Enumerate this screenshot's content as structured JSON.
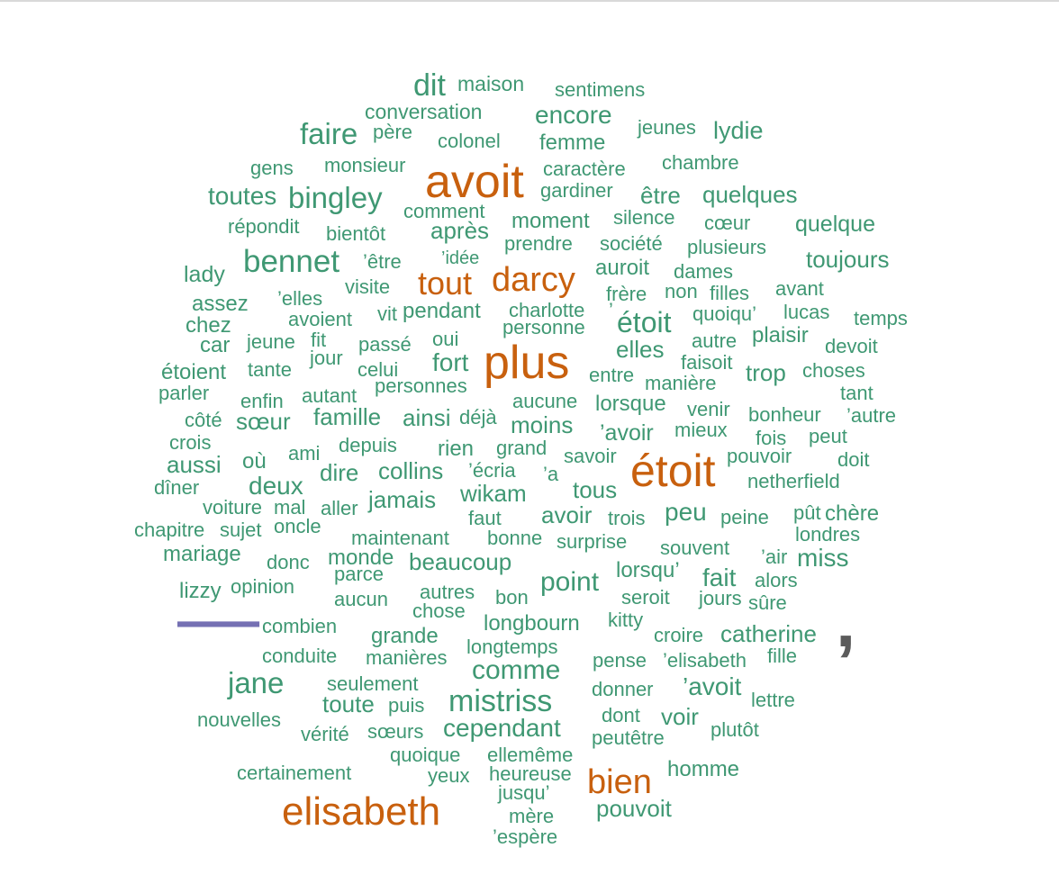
{
  "colors": {
    "big": "#c8600e",
    "normal": "#3f9873",
    "dash": "#7570b3",
    "comma": "#5b5b5b"
  },
  "words": [
    {
      "t": "dit",
      "c": "normal"
    },
    {
      "t": "maison",
      "c": "normal"
    },
    {
      "t": "sentimens",
      "c": "normal"
    },
    {
      "t": "conversation",
      "c": "normal"
    },
    {
      "t": "encore",
      "c": "normal"
    },
    {
      "t": "faire",
      "c": "normal"
    },
    {
      "t": "père",
      "c": "normal"
    },
    {
      "t": "jeunes",
      "c": "normal"
    },
    {
      "t": "lydie",
      "c": "normal"
    },
    {
      "t": "colonel",
      "c": "normal"
    },
    {
      "t": "femme",
      "c": "normal"
    },
    {
      "t": "gens",
      "c": "normal"
    },
    {
      "t": "monsieur",
      "c": "normal"
    },
    {
      "t": "avoit",
      "c": "big"
    },
    {
      "t": "caractère",
      "c": "normal"
    },
    {
      "t": "chambre",
      "c": "normal"
    },
    {
      "t": "gardiner",
      "c": "normal"
    },
    {
      "t": "toutes",
      "c": "normal"
    },
    {
      "t": "bingley",
      "c": "normal"
    },
    {
      "t": "être",
      "c": "normal"
    },
    {
      "t": "quelques",
      "c": "normal"
    },
    {
      "t": "comment",
      "c": "normal"
    },
    {
      "t": "répondit",
      "c": "normal"
    },
    {
      "t": "bientôt",
      "c": "normal"
    },
    {
      "t": "après",
      "c": "normal"
    },
    {
      "t": "moment",
      "c": "normal"
    },
    {
      "t": "silence",
      "c": "normal"
    },
    {
      "t": "cœur",
      "c": "normal"
    },
    {
      "t": "quelque",
      "c": "normal"
    },
    {
      "t": "prendre",
      "c": "normal"
    },
    {
      "t": "société",
      "c": "normal"
    },
    {
      "t": "plusieurs",
      "c": "normal"
    },
    {
      "t": "bennet",
      "c": "normal"
    },
    {
      "t": "’idée",
      "c": "normal"
    },
    {
      "t": "toujours",
      "c": "normal"
    },
    {
      "t": "’être",
      "c": "normal"
    },
    {
      "t": "auroit",
      "c": "normal"
    },
    {
      "t": "dames",
      "c": "normal"
    },
    {
      "t": "lady",
      "c": "normal"
    },
    {
      "t": "darcy",
      "c": "big"
    },
    {
      "t": "tout",
      "c": "big"
    },
    {
      "t": "visite",
      "c": "normal"
    },
    {
      "t": "frère",
      "c": "normal"
    },
    {
      "t": "non",
      "c": "normal"
    },
    {
      "t": "filles",
      "c": "normal"
    },
    {
      "t": "avant",
      "c": "normal"
    },
    {
      "t": "assez",
      "c": "normal"
    },
    {
      "t": "’elles",
      "c": "normal"
    },
    {
      "t": "pendant",
      "c": "normal"
    },
    {
      "t": "charlotte",
      "c": "normal"
    },
    {
      "t": "quoiqu’",
      "c": "normal"
    },
    {
      "t": "lucas",
      "c": "normal"
    },
    {
      "t": "avoient",
      "c": "normal"
    },
    {
      "t": "vit",
      "c": "normal"
    },
    {
      "t": "’",
      "c": "normal"
    },
    {
      "t": "étoit",
      "c": "normal"
    },
    {
      "t": "temps",
      "c": "normal"
    },
    {
      "t": "chez",
      "c": "normal"
    },
    {
      "t": "personne",
      "c": "normal"
    },
    {
      "t": "car",
      "c": "normal"
    },
    {
      "t": "jeune",
      "c": "normal"
    },
    {
      "t": "fit",
      "c": "normal"
    },
    {
      "t": "oui",
      "c": "normal"
    },
    {
      "t": "autre",
      "c": "normal"
    },
    {
      "t": "plaisir",
      "c": "normal"
    },
    {
      "t": "devoit",
      "c": "normal"
    },
    {
      "t": "passé",
      "c": "normal"
    },
    {
      "t": "elles",
      "c": "normal"
    },
    {
      "t": "jour",
      "c": "normal"
    },
    {
      "t": "fort",
      "c": "normal"
    },
    {
      "t": "plus",
      "c": "big"
    },
    {
      "t": "faisoit",
      "c": "normal"
    },
    {
      "t": "étoient",
      "c": "normal"
    },
    {
      "t": "tante",
      "c": "normal"
    },
    {
      "t": "celui",
      "c": "normal"
    },
    {
      "t": "entre",
      "c": "normal"
    },
    {
      "t": "trop",
      "c": "normal"
    },
    {
      "t": "choses",
      "c": "normal"
    },
    {
      "t": "parler",
      "c": "normal"
    },
    {
      "t": "personnes",
      "c": "normal"
    },
    {
      "t": "manière",
      "c": "normal"
    },
    {
      "t": "autant",
      "c": "normal"
    },
    {
      "t": "tant",
      "c": "normal"
    },
    {
      "t": "enfin",
      "c": "normal"
    },
    {
      "t": "aucune",
      "c": "normal"
    },
    {
      "t": "lorsque",
      "c": "normal"
    },
    {
      "t": "côté",
      "c": "normal"
    },
    {
      "t": "sœur",
      "c": "normal"
    },
    {
      "t": "famille",
      "c": "normal"
    },
    {
      "t": "ainsi",
      "c": "normal"
    },
    {
      "t": "déjà",
      "c": "normal"
    },
    {
      "t": "venir",
      "c": "normal"
    },
    {
      "t": "bonheur",
      "c": "normal"
    },
    {
      "t": "’autre",
      "c": "normal"
    },
    {
      "t": "moins",
      "c": "normal"
    },
    {
      "t": "’avoir",
      "c": "normal"
    },
    {
      "t": "mieux",
      "c": "normal"
    },
    {
      "t": "fois",
      "c": "normal"
    },
    {
      "t": "crois",
      "c": "normal"
    },
    {
      "t": "peut",
      "c": "normal"
    },
    {
      "t": "depuis",
      "c": "normal"
    },
    {
      "t": "rien",
      "c": "normal"
    },
    {
      "t": "grand",
      "c": "normal"
    },
    {
      "t": "ami",
      "c": "normal"
    },
    {
      "t": "savoir",
      "c": "normal"
    },
    {
      "t": "aussi",
      "c": "normal"
    },
    {
      "t": "pouvoir",
      "c": "normal"
    },
    {
      "t": "doit",
      "c": "normal"
    },
    {
      "t": "où",
      "c": "normal"
    },
    {
      "t": "étoit",
      "c": "big"
    },
    {
      "t": "dire",
      "c": "normal"
    },
    {
      "t": "collins",
      "c": "normal"
    },
    {
      "t": "’écria",
      "c": "normal"
    },
    {
      "t": "’a",
      "c": "normal"
    },
    {
      "t": "dîner",
      "c": "normal"
    },
    {
      "t": "deux",
      "c": "normal"
    },
    {
      "t": "netherfield",
      "c": "normal"
    },
    {
      "t": "tous",
      "c": "normal"
    },
    {
      "t": "wikam",
      "c": "normal"
    },
    {
      "t": "jamais",
      "c": "normal"
    },
    {
      "t": "voiture",
      "c": "normal"
    },
    {
      "t": "mal",
      "c": "normal"
    },
    {
      "t": "aller",
      "c": "normal"
    },
    {
      "t": "peu",
      "c": "normal"
    },
    {
      "t": "pût",
      "c": "normal"
    },
    {
      "t": "chère",
      "c": "normal"
    },
    {
      "t": "avoir",
      "c": "normal"
    },
    {
      "t": "faut",
      "c": "normal"
    },
    {
      "t": "trois",
      "c": "normal"
    },
    {
      "t": "peine",
      "c": "normal"
    },
    {
      "t": "chapitre",
      "c": "normal"
    },
    {
      "t": "sujet",
      "c": "normal"
    },
    {
      "t": "oncle",
      "c": "normal"
    },
    {
      "t": "londres",
      "c": "normal"
    },
    {
      "t": "maintenant",
      "c": "normal"
    },
    {
      "t": "bonne",
      "c": "normal"
    },
    {
      "t": "surprise",
      "c": "normal"
    },
    {
      "t": "mariage",
      "c": "normal"
    },
    {
      "t": "souvent",
      "c": "normal"
    },
    {
      "t": "’air",
      "c": "normal"
    },
    {
      "t": "miss",
      "c": "normal"
    },
    {
      "t": "monde",
      "c": "normal"
    },
    {
      "t": "donc",
      "c": "normal"
    },
    {
      "t": "beaucoup",
      "c": "normal"
    },
    {
      "t": "parce",
      "c": "normal"
    },
    {
      "t": "point",
      "c": "normal"
    },
    {
      "t": "lorsqu’",
      "c": "normal"
    },
    {
      "t": "fait",
      "c": "normal"
    },
    {
      "t": "alors",
      "c": "normal"
    },
    {
      "t": "lizzy",
      "c": "normal"
    },
    {
      "t": "opinion",
      "c": "normal"
    },
    {
      "t": "aucun",
      "c": "normal"
    },
    {
      "t": "autres",
      "c": "normal"
    },
    {
      "t": "bon",
      "c": "normal"
    },
    {
      "t": "seroit",
      "c": "normal"
    },
    {
      "t": "jours",
      "c": "normal"
    },
    {
      "t": "sûre",
      "c": "normal"
    },
    {
      "t": "chose",
      "c": "normal"
    },
    {
      "t": "kitty",
      "c": "normal"
    },
    {
      "t": "combien",
      "c": "normal"
    },
    {
      "t": "longbourn",
      "c": "normal"
    },
    {
      "t": "grande",
      "c": "normal"
    },
    {
      "t": "croire",
      "c": "normal"
    },
    {
      "t": "catherine",
      "c": "normal"
    },
    {
      "t": "conduite",
      "c": "normal"
    },
    {
      "t": "longtemps",
      "c": "normal"
    },
    {
      "t": "manières",
      "c": "normal"
    },
    {
      "t": "fille",
      "c": "normal"
    },
    {
      "t": "pense",
      "c": "normal"
    },
    {
      "t": "’elisabeth",
      "c": "normal"
    },
    {
      "t": "comme",
      "c": "normal"
    },
    {
      "t": "jane",
      "c": "normal"
    },
    {
      "t": "seulement",
      "c": "normal"
    },
    {
      "t": "’avoit",
      "c": "normal"
    },
    {
      "t": "donner",
      "c": "normal"
    },
    {
      "t": "mistriss",
      "c": "normal"
    },
    {
      "t": "lettre",
      "c": "normal"
    },
    {
      "t": "toute",
      "c": "normal"
    },
    {
      "t": "puis",
      "c": "normal"
    },
    {
      "t": "dont",
      "c": "normal"
    },
    {
      "t": "voir",
      "c": "normal"
    },
    {
      "t": "nouvelles",
      "c": "normal"
    },
    {
      "t": "cependant",
      "c": "normal"
    },
    {
      "t": "plutôt",
      "c": "normal"
    },
    {
      "t": "vérité",
      "c": "normal"
    },
    {
      "t": "sœurs",
      "c": "normal"
    },
    {
      "t": "peutêtre",
      "c": "normal"
    },
    {
      "t": "quoique",
      "c": "normal"
    },
    {
      "t": "ellemême",
      "c": "normal"
    },
    {
      "t": "homme",
      "c": "normal"
    },
    {
      "t": "certainement",
      "c": "normal"
    },
    {
      "t": "heureuse",
      "c": "normal"
    },
    {
      "t": "yeux",
      "c": "normal"
    },
    {
      "t": "bien",
      "c": "big"
    },
    {
      "t": "jusqu’",
      "c": "normal"
    },
    {
      "t": "pouvoit",
      "c": "normal"
    },
    {
      "t": "elisabeth",
      "c": "big"
    },
    {
      "t": "mère",
      "c": "normal"
    },
    {
      "t": "’espère",
      "c": "normal"
    }
  ],
  "dash": {
    "t": "—",
    "c": "dash"
  },
  "comma": {
    "t": ",",
    "c": "comma"
  }
}
